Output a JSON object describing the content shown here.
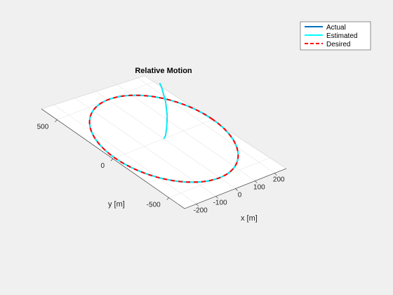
{
  "chart_data": {
    "type": "line",
    "title": "Relative Motion",
    "xlabel": "x [m]",
    "ylabel": "y [m]",
    "zlabel": "",
    "x_ticks": [
      "-200",
      "-100",
      "0",
      "100",
      "200"
    ],
    "y_ticks": [
      "-500",
      "0",
      "500"
    ],
    "xlim": [
      -260,
      260
    ],
    "ylim": [
      -640,
      640
    ],
    "grid": true,
    "legend_position": "top-right",
    "series": [
      {
        "name": "Actual",
        "color": "#0072bd",
        "style": "solid"
      },
      {
        "name": "Estimated",
        "color": "#00ffff",
        "style": "solid"
      },
      {
        "name": "Desired",
        "color": "#ff0000",
        "style": "dashed"
      }
    ],
    "orbit": {
      "center_x": 0,
      "center_y": 0,
      "radius_x": 250,
      "radius_y": 500
    },
    "approach_path": {
      "x": [
        0,
        20,
        60,
        120,
        180,
        230,
        248
      ],
      "y": [
        0,
        20,
        80,
        180,
        300,
        420,
        470
      ]
    }
  }
}
